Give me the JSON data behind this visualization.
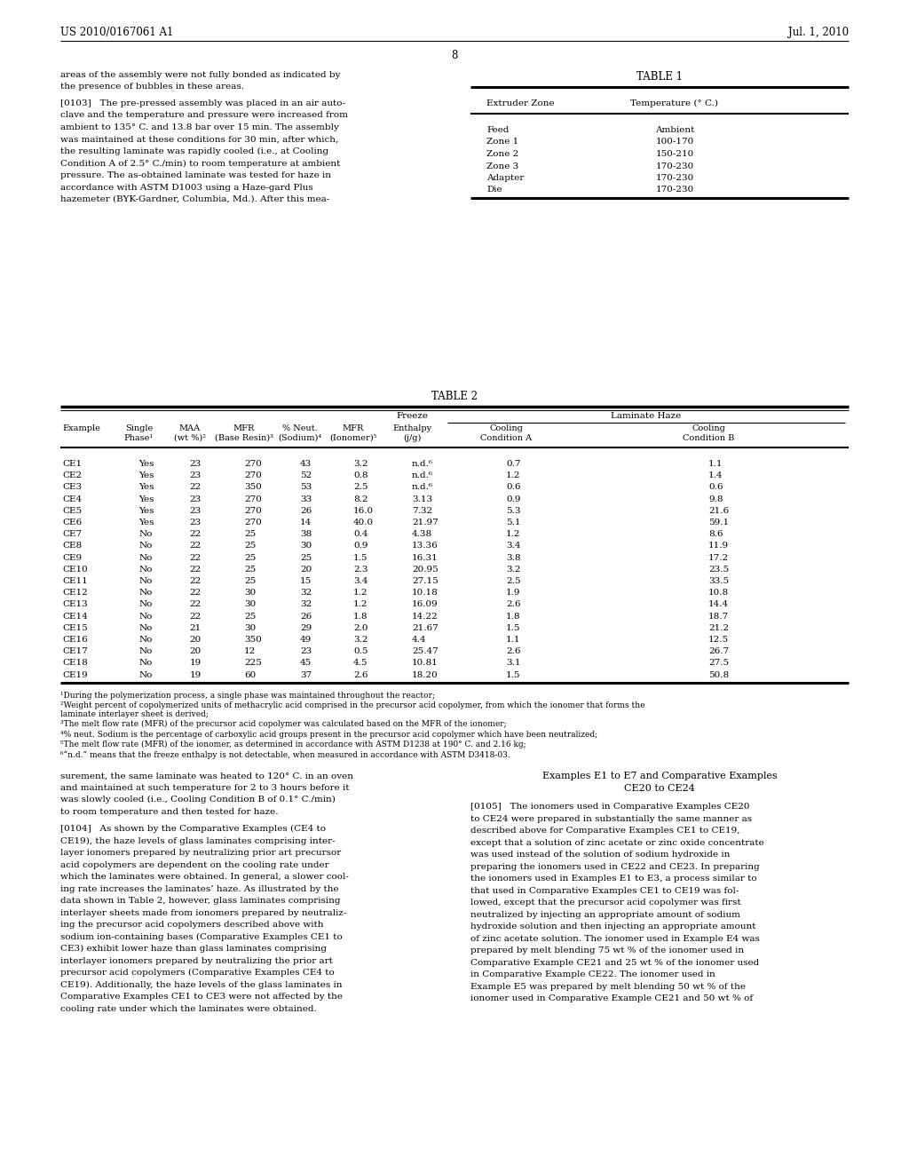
{
  "page_header_left": "US 2010/0167061 A1",
  "page_header_right": "Jul. 1, 2010",
  "page_number": "8",
  "bg_color": "#ffffff",
  "table1_title": "TABLE 1",
  "table1_col1_header": "Extruder Zone",
  "table1_col2_header": "Temperature (° C.)",
  "table1_rows": [
    [
      "Feed",
      "Ambient"
    ],
    [
      "Zone 1",
      "100-170"
    ],
    [
      "Zone 2",
      "150-210"
    ],
    [
      "Zone 3",
      "170-230"
    ],
    [
      "Adapter",
      "170-230"
    ],
    [
      "Die",
      "170-230"
    ]
  ],
  "table2_title": "TABLE 2",
  "table2_rows": [
    [
      "CE1",
      "Yes",
      "23",
      "270",
      "43",
      "3.2",
      "n.d.⁶",
      "0.7",
      "1.1"
    ],
    [
      "CE2",
      "Yes",
      "23",
      "270",
      "52",
      "0.8",
      "n.d.⁶",
      "1.2",
      "1.4"
    ],
    [
      "CE3",
      "Yes",
      "22",
      "350",
      "53",
      "2.5",
      "n.d.⁶",
      "0.6",
      "0.6"
    ],
    [
      "CE4",
      "Yes",
      "23",
      "270",
      "33",
      "8.2",
      "3.13",
      "0.9",
      "9.8"
    ],
    [
      "CE5",
      "Yes",
      "23",
      "270",
      "26",
      "16.0",
      "7.32",
      "5.3",
      "21.6"
    ],
    [
      "CE6",
      "Yes",
      "23",
      "270",
      "14",
      "40.0",
      "21.97",
      "5.1",
      "59.1"
    ],
    [
      "CE7",
      "No",
      "22",
      "25",
      "38",
      "0.4",
      "4.38",
      "1.2",
      "8.6"
    ],
    [
      "CE8",
      "No",
      "22",
      "25",
      "30",
      "0.9",
      "13.36",
      "3.4",
      "11.9"
    ],
    [
      "CE9",
      "No",
      "22",
      "25",
      "25",
      "1.5",
      "16.31",
      "3.8",
      "17.2"
    ],
    [
      "CE10",
      "No",
      "22",
      "25",
      "20",
      "2.3",
      "20.95",
      "3.2",
      "23.5"
    ],
    [
      "CE11",
      "No",
      "22",
      "25",
      "15",
      "3.4",
      "27.15",
      "2.5",
      "33.5"
    ],
    [
      "CE12",
      "No",
      "22",
      "30",
      "32",
      "1.2",
      "10.18",
      "1.9",
      "10.8"
    ],
    [
      "CE13",
      "No",
      "22",
      "30",
      "32",
      "1.2",
      "16.09",
      "2.6",
      "14.4"
    ],
    [
      "CE14",
      "No",
      "22",
      "25",
      "26",
      "1.8",
      "14.22",
      "1.8",
      "18.7"
    ],
    [
      "CE15",
      "No",
      "21",
      "30",
      "29",
      "2.0",
      "21.67",
      "1.5",
      "21.2"
    ],
    [
      "CE16",
      "No",
      "20",
      "350",
      "49",
      "3.2",
      "4.4",
      "1.1",
      "12.5"
    ],
    [
      "CE17",
      "No",
      "20",
      "12",
      "23",
      "0.5",
      "25.47",
      "2.6",
      "26.7"
    ],
    [
      "CE18",
      "No",
      "19",
      "225",
      "45",
      "4.5",
      "10.81",
      "3.1",
      "27.5"
    ],
    [
      "CE19",
      "No",
      "19",
      "60",
      "37",
      "2.6",
      "18.20",
      "1.5",
      "50.8"
    ]
  ],
  "table2_footnotes": [
    "¹During the polymerization process, a single phase was maintained throughout the reactor;",
    "²Weight percent of copolymerized units of methacrylic acid comprised in the precursor acid copolymer, from which the ionomer that forms the laminate interlayer sheet is derived;",
    "³The melt flow rate (MFR) of the precursor acid copolymer was calculated based on the MFR of the ionomer;",
    "⁴% neut. Sodium is the percentage of carboxylic acid groups present in the precursor acid copolymer which have been neutralized;",
    "⁵The melt flow rate (MFR) of the ionomer, as determined in accordance with ASTM D1238 at 190° C. and 2.16 kg;",
    "⁶“n.d.” means that the freeze enthalpy is not detectable, when measured in accordance with ASTM D3418-03."
  ],
  "left_top_lines": [
    "areas of the assembly were not fully bonded as indicated by",
    "the presence of bubbles in these areas."
  ],
  "left_para2_lines": [
    "[0103]   The pre-pressed assembly was placed in an air auto-",
    "clave and the temperature and pressure were increased from",
    "ambient to 135° C. and 13.8 bar over 15 min. The assembly",
    "was maintained at these conditions for 30 min, after which,",
    "the resulting laminate was rapidly cooled (i.e., at Cooling",
    "Condition A of 2.5° C./min) to room temperature at ambient",
    "pressure. The as-obtained laminate was tested for haze in",
    "accordance with ASTM D1003 using a Haze-gard Plus",
    "hazemeter (BYK-Gardner, Columbia, Md.). After this mea-"
  ],
  "bottom_left_para1_lines": [
    "surement, the same laminate was heated to 120° C. in an oven",
    "and maintained at such temperature for 2 to 3 hours before it",
    "was slowly cooled (i.e., Cooling Condition B of 0.1° C./min)",
    "to room temperature and then tested for haze."
  ],
  "bottom_left_para2_lines": [
    "[0104]   As shown by the Comparative Examples (CE4 to",
    "CE19), the haze levels of glass laminates comprising inter-",
    "layer ionomers prepared by neutralizing prior art precursor",
    "acid copolymers are dependent on the cooling rate under",
    "which the laminates were obtained. In general, a slower cool-",
    "ing rate increases the laminates’ haze. As illustrated by the",
    "data shown in Table 2, however, glass laminates comprising",
    "interlayer sheets made from ionomers prepared by neutraliz-",
    "ing the precursor acid copolymers described above with",
    "sodium ion-containing bases (Comparative Examples CE1 to",
    "CE3) exhibit lower haze than glass laminates comprising",
    "interlayer ionomers prepared by neutralizing the prior art",
    "precursor acid copolymers (Comparative Examples CE4 to",
    "CE19). Additionally, the haze levels of the glass laminates in",
    "Comparative Examples CE1 to CE3 were not affected by the",
    "cooling rate under which the laminates were obtained."
  ],
  "bottom_right_title_lines": [
    "Examples E1 to E7 and Comparative Examples",
    "CE20 to CE24"
  ],
  "bottom_right_para1_lines": [
    "[0105]   The ionomers used in Comparative Examples CE20",
    "to CE24 were prepared in substantially the same manner as",
    "described above for Comparative Examples CE1 to CE19,",
    "except that a solution of zinc acetate or zinc oxide concentrate",
    "was used instead of the solution of sodium hydroxide in",
    "preparing the ionomers used in CE22 and CE23. In preparing",
    "the ionomers used in Examples E1 to E3, a process similar to",
    "that used in Comparative Examples CE1 to CE19 was fol-",
    "lowed, except that the precursor acid copolymer was first",
    "neutralized by injecting an appropriate amount of sodium",
    "hydroxide solution and then injecting an appropriate amount",
    "of zinc acetate solution. The ionomer used in Example E4 was",
    "prepared by melt blending 75 wt % of the ionomer used in",
    "Comparative Example CE21 and 25 wt % of the ionomer used",
    "in Comparative Example CE22. The ionomer used in",
    "Example E5 was prepared by melt blending 50 wt % of the",
    "ionomer used in Comparative Example CE21 and 50 wt % of"
  ]
}
